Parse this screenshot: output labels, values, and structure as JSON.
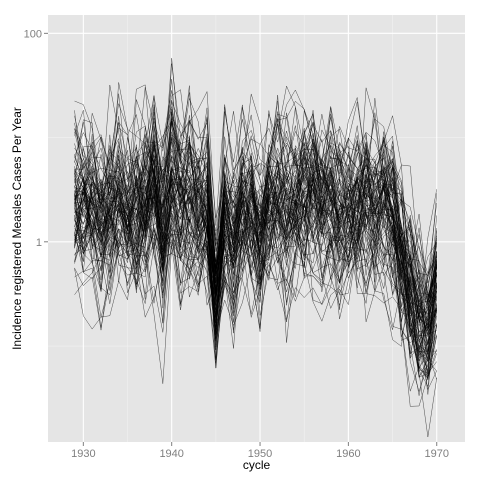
{
  "chart_data": {
    "type": "line",
    "title": "",
    "xlabel": "cycle",
    "ylabel": "Incidence registered Measles Cases Per Year",
    "x_ticks": [
      1930,
      1940,
      1950,
      1960,
      1970
    ],
    "y_ticks": [
      1,
      100
    ],
    "y_scale": "log10",
    "xlim": [
      1926,
      1973.2
    ],
    "ylim": [
      0.012,
      150
    ],
    "grid": true,
    "legend": "none",
    "n_series": 100,
    "x_start": 1929,
    "x_end": 1970,
    "ensemble_mean_log10": [
      0.39,
      0.38,
      0.33,
      0.24,
      0.38,
      0.54,
      0.28,
      0.32,
      0.42,
      0.63,
      0.15,
      0.58,
      0.36,
      0.43,
      0.31,
      0.4,
      -0.58,
      0.23,
      0.02,
      0.36,
      0.34,
      0.07,
      0.38,
      0.45,
      0.34,
      0.42,
      0.41,
      0.46,
      0.35,
      0.4,
      0.29,
      0.29,
      0.3,
      0.39,
      0.38,
      0.37,
      0.2,
      -0.12,
      -0.43,
      -0.71,
      -0.86,
      -0.45
    ],
    "ensemble_spread_log10": [
      0.35,
      0.35,
      0.35,
      0.35,
      0.35,
      0.35,
      0.35,
      0.35,
      0.42,
      0.42,
      0.42,
      0.38,
      0.35,
      0.35,
      0.35,
      0.35,
      0.3,
      0.35,
      0.35,
      0.35,
      0.35,
      0.35,
      0.35,
      0.35,
      0.35,
      0.35,
      0.35,
      0.35,
      0.35,
      0.35,
      0.35,
      0.35,
      0.35,
      0.35,
      0.35,
      0.35,
      0.35,
      0.35,
      0.35,
      0.3,
      0.3,
      0.28
    ],
    "colors": {
      "panel": "#e5e5e5",
      "grid_major": "#ffffff",
      "grid_minor": "#f2f2f2",
      "line": "#000000",
      "tick_text": "#7f7f7f",
      "axis_title": "#000000"
    }
  }
}
